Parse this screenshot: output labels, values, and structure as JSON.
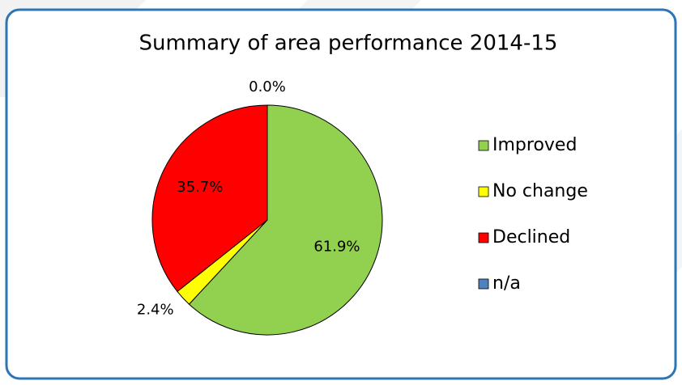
{
  "chart_data": {
    "type": "pie",
    "title": "Summary of area performance 2014-15",
    "categories": [
      "Improved",
      "No change",
      "Declined",
      "n/a"
    ],
    "values": [
      61.9,
      2.4,
      35.7,
      0.0
    ],
    "value_labels": [
      "61.9%",
      "2.4%",
      "35.7%",
      "0.0%"
    ],
    "colors": [
      "#92d050",
      "#ffff00",
      "#ff0000",
      "#4f81bd"
    ],
    "legend": "right"
  }
}
